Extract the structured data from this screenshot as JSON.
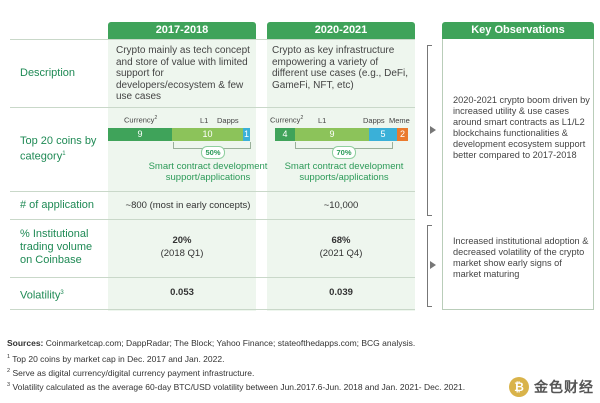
{
  "columns": {
    "col1": {
      "title": "2017-2018"
    },
    "col2": {
      "title": "2020-2021"
    },
    "col3": {
      "title": "Key Observations"
    }
  },
  "rows": {
    "description": "Description",
    "top20": "Top 20 coins by category",
    "top20_sup": "1",
    "applications": "# of application",
    "institutional": "% Institutional trading volume on Coinbase",
    "volatility": "Volatility",
    "volatility_sup": "3"
  },
  "col1": {
    "description": "Crypto mainly as tech concept and store of value with limited support for developers/ecosystem & few use cases",
    "bar_labels": {
      "currency": "Currency",
      "currency_sup": "2",
      "l1": "L1",
      "dapps": "Dapps"
    },
    "segments": [
      {
        "name": "Currency",
        "value": "9",
        "color": "#3fa35a"
      },
      {
        "name": "L1",
        "value": "10",
        "color": "#8cc35a"
      },
      {
        "name": "Dapps",
        "value": "1",
        "color": "#3ab0d8"
      }
    ],
    "pill": "50%",
    "smart": "Smart contract development support/applications",
    "applications": "~800 (most in early concepts)",
    "institutional_value": "20%",
    "institutional_date": "(2018 Q1)",
    "volatility": "0.053"
  },
  "col2": {
    "description": "Crypto as key infrastructure empowering a variety of different use cases (e.g., DeFi, GameFi, NFT, etc)",
    "bar_labels": {
      "currency": "Currency",
      "currency_sup": "2",
      "l1": "L1",
      "dapps": "Dapps",
      "meme": "Meme"
    },
    "segments": [
      {
        "name": "Currency",
        "value": "4",
        "color": "#3fa35a"
      },
      {
        "name": "L1",
        "value": "9",
        "color": "#8cc35a"
      },
      {
        "name": "Dapps",
        "value": "5",
        "color": "#3ab0d8"
      },
      {
        "name": "Meme",
        "value": "2",
        "color": "#ea7a2c"
      }
    ],
    "pill": "70%",
    "smart": "Smart contract development supports/applications",
    "applications": "~10,000",
    "institutional_value": "68%",
    "institutional_date": "(2021 Q4)",
    "volatility": "0.039"
  },
  "observations": {
    "first": "2020-2021 crypto boom driven by increased utility & use cases around smart contracts as L1/L2 blockchains functionalities & development ecosystem support better compared to 2017-2018",
    "second": "Increased institutional adoption & decreased volatility of the crypto market show early signs of market maturing"
  },
  "footer": {
    "sources_label": "Sources:",
    "sources": "Coinmarketcap.com; DappRadar; The Block; Yahoo Finance; stateofthedapps.com; BCG analysis.",
    "note1_num": "1",
    "note1": "Top 20 coins by market cap in Dec. 2017 and Jan. 2022.",
    "note2_num": "2",
    "note2": "Serve as digital currency/digital currency payment infrastructure.",
    "note3_num": "3",
    "note3": "Volatility calculated as the average 60-day BTC/USD volatility between Jun.2017.6-Jun. 2018 and Jan. 2021- Dec. 2021."
  },
  "watermark": {
    "text": "金色财经",
    "logo": "₿"
  }
}
